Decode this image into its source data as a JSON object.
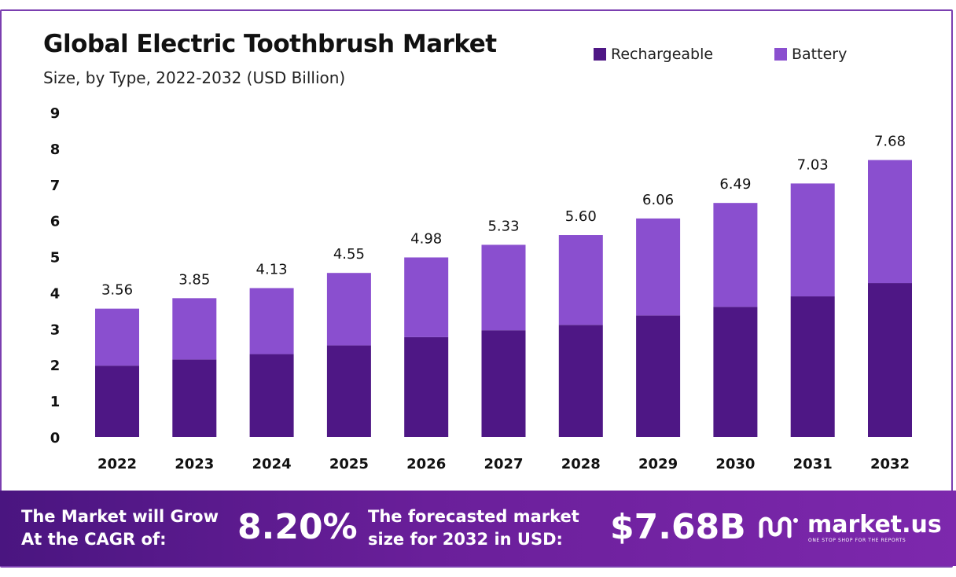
{
  "colors": {
    "rechargeable": "#4e1785",
    "battery": "#8a4fcf",
    "frame": "#7b3fb0"
  },
  "chart_data": {
    "type": "bar",
    "stacked": true,
    "title": "Global Electric Toothbrush Market",
    "subtitle": "Size, by Type, 2022-2032 (USD Billion)",
    "categories": [
      "2022",
      "2023",
      "2024",
      "2025",
      "2026",
      "2027",
      "2028",
      "2029",
      "2030",
      "2031",
      "2032"
    ],
    "series": [
      {
        "name": "Rechargeable",
        "values": [
          1.98,
          2.15,
          2.3,
          2.54,
          2.77,
          2.96,
          3.11,
          3.37,
          3.61,
          3.9,
          4.27
        ]
      },
      {
        "name": "Battery",
        "values": [
          1.58,
          1.7,
          1.83,
          2.01,
          2.21,
          2.37,
          2.49,
          2.69,
          2.88,
          3.13,
          3.41
        ]
      }
    ],
    "totals": [
      "3.56",
      "3.85",
      "4.13",
      "4.55",
      "4.98",
      "5.33",
      "5.60",
      "6.06",
      "6.49",
      "7.03",
      "7.68"
    ],
    "ylim": [
      0,
      9
    ],
    "yticks": [
      "0",
      "1",
      "2",
      "3",
      "4",
      "5",
      "6",
      "7",
      "8",
      "9"
    ],
    "xlabel": "",
    "ylabel": "",
    "grid": false,
    "legend": "top-right"
  },
  "banner": {
    "cagr_label_line1": "The Market will Grow",
    "cagr_label_line2": "At the CAGR of:",
    "cagr_value": "8.20%",
    "forecast_label_line1": "The forecasted market",
    "forecast_label_line2": "size for 2032 in USD:",
    "forecast_value": "$7.68B"
  },
  "logo": {
    "name": "market.us",
    "tagline": "ONE STOP SHOP FOR THE REPORTS"
  }
}
